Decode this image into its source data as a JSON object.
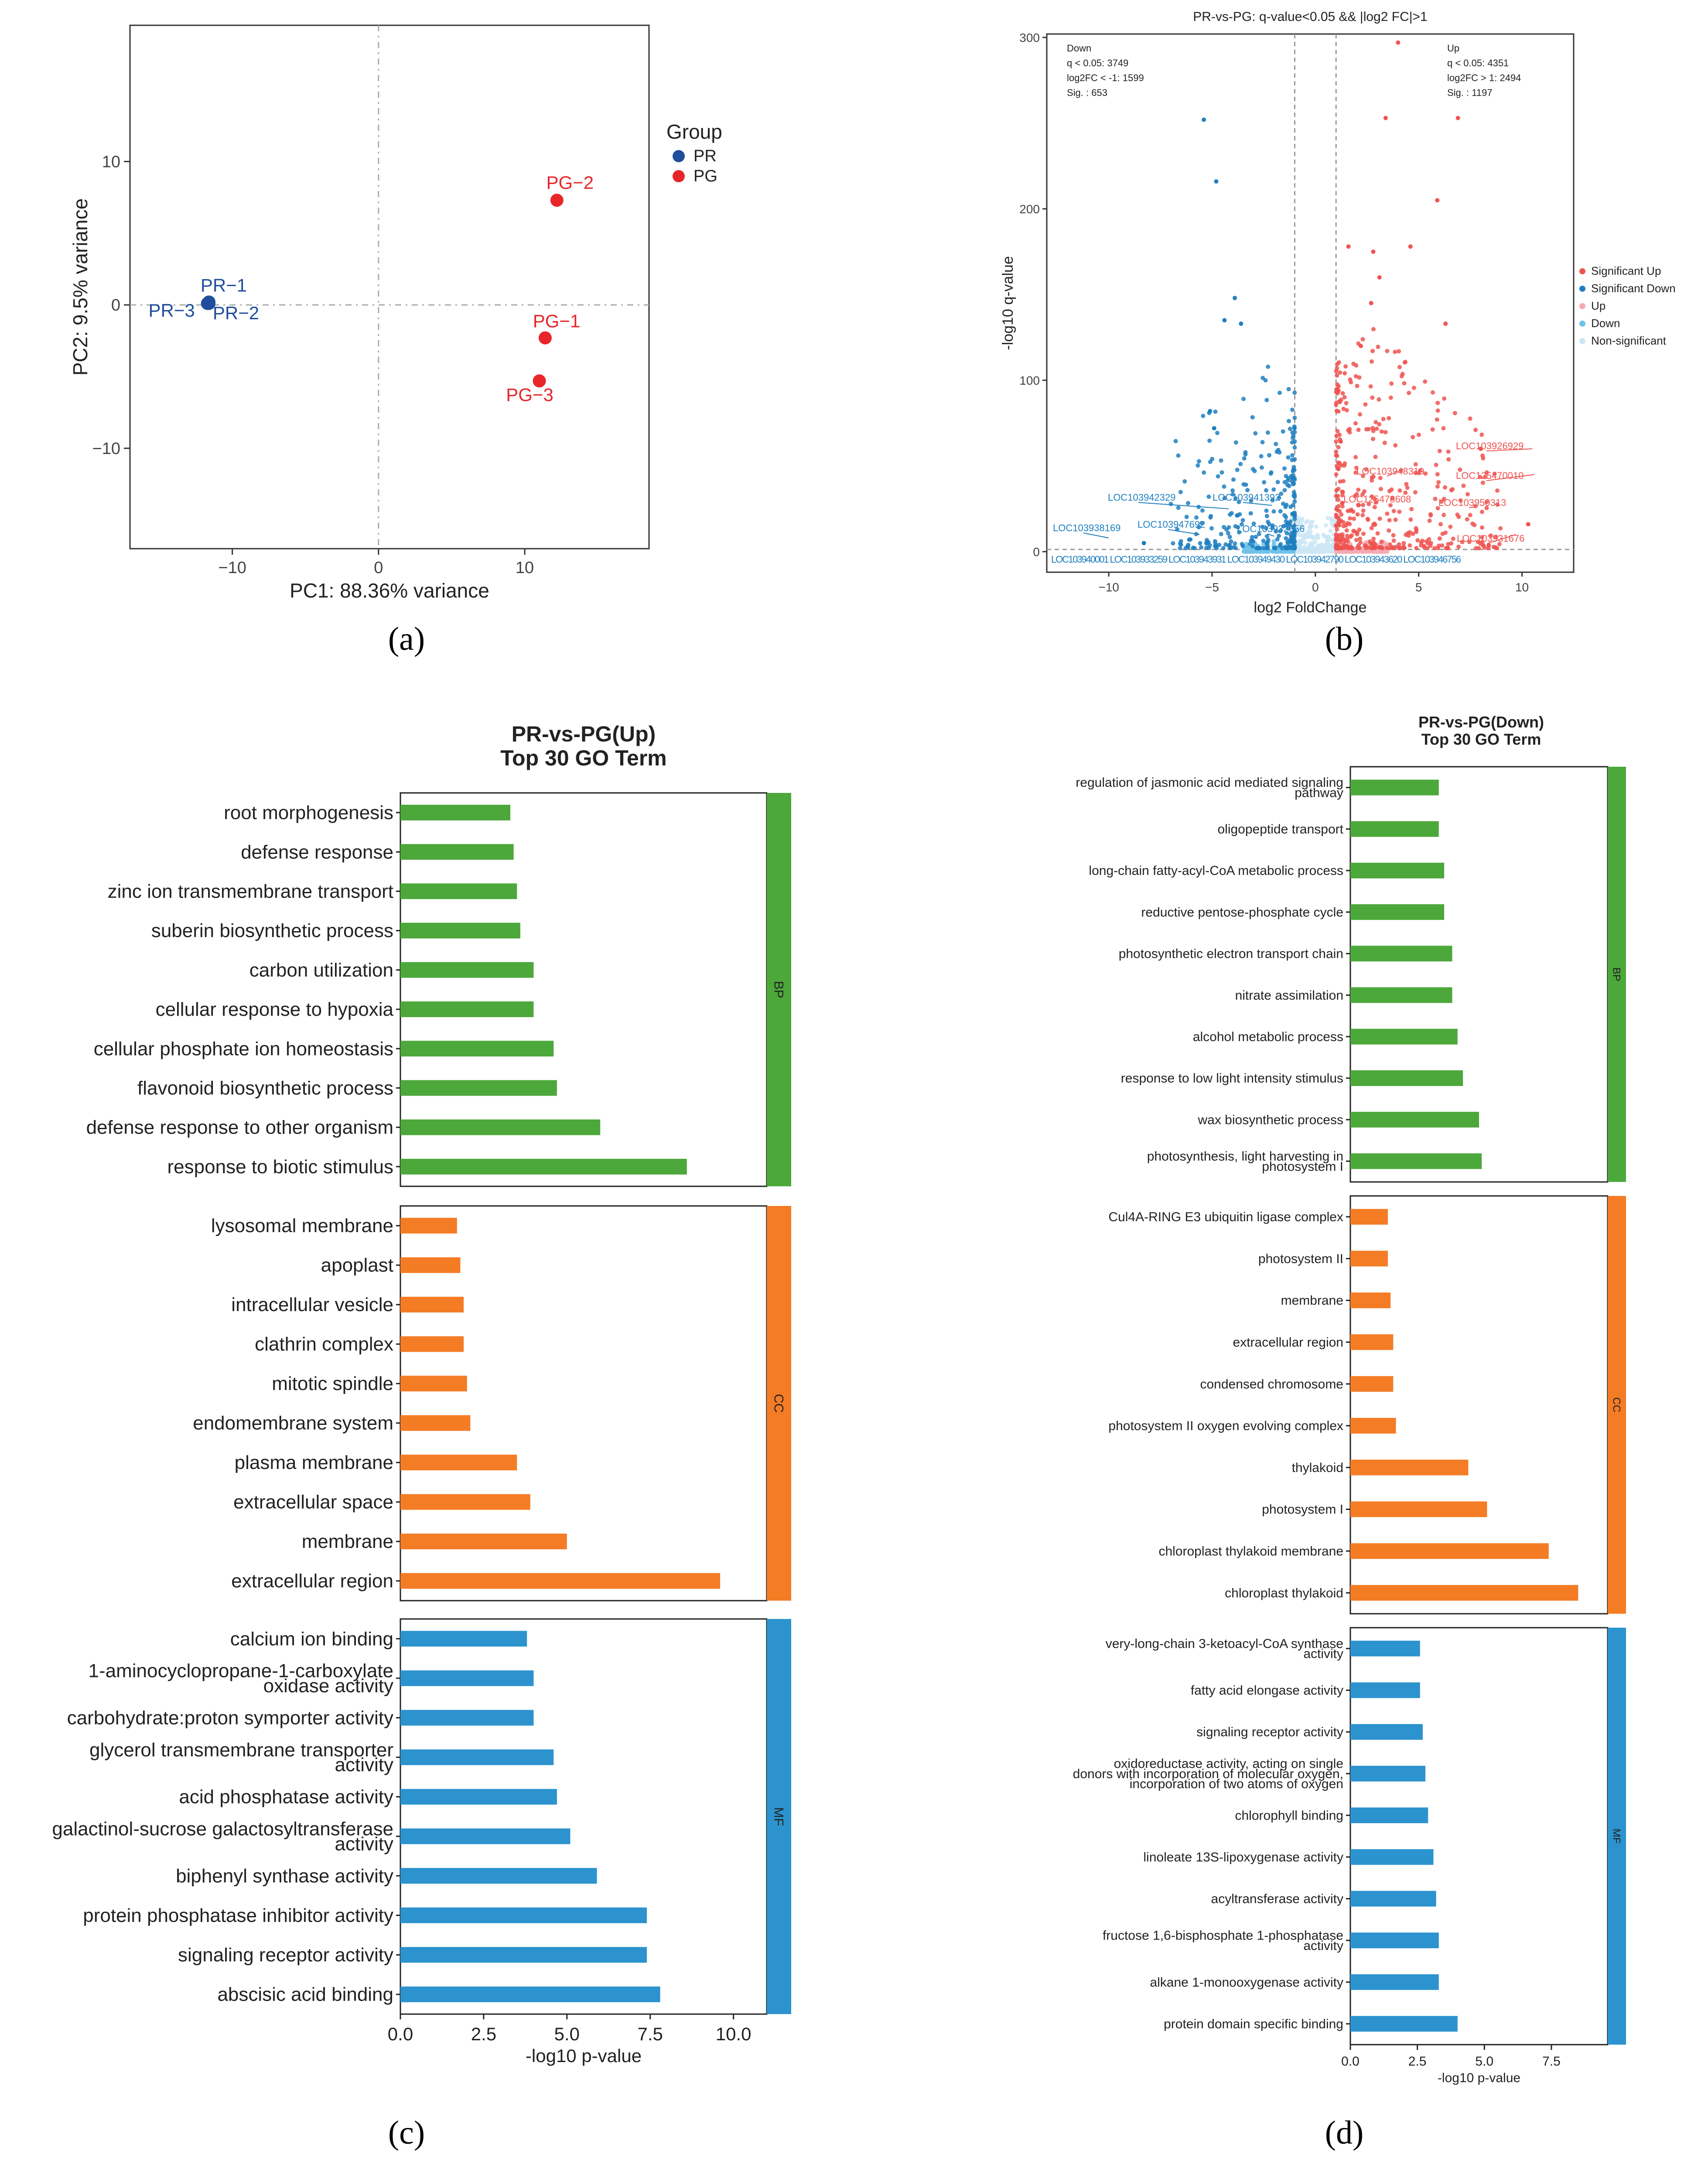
{
  "panel_labels": [
    "(a)",
    "(b)",
    "(c)",
    "(d)"
  ],
  "colors": {
    "pr": "#1f4e9c",
    "pg": "#e8262a",
    "sig_up": "#ef5350",
    "sig_down": "#1e7fc0",
    "up": "#f4aab4",
    "down": "#6fc3ea",
    "ns": "#cde6f4",
    "bp": "#4ca83a",
    "cc": "#f47c25",
    "mf": "#2c93cf"
  },
  "chart_data": [
    {
      "id": "a",
      "type": "scatter",
      "title": "",
      "xlabel": "PC1: 88.36% variance",
      "ylabel": "PC2: 9.5% variance",
      "xlim": [
        -17,
        18.5
      ],
      "ylim": [
        -17,
        19.5
      ],
      "xticks": [
        -10,
        0,
        10
      ],
      "yticks": [
        -10,
        0,
        10
      ],
      "legend": {
        "title": "Group",
        "entries": [
          "PR",
          "PG"
        ],
        "position": "right"
      },
      "points": [
        {
          "label": "PR-1",
          "group": "PR",
          "x": -11.6,
          "y": 0.2
        },
        {
          "label": "PR-2",
          "group": "PR",
          "x": -11.6,
          "y": 0.1
        },
        {
          "label": "PR-3",
          "group": "PR",
          "x": -11.7,
          "y": 0.1
        },
        {
          "label": "PG-2",
          "group": "PG",
          "x": 12.2,
          "y": 7.3
        },
        {
          "label": "PG-1",
          "group": "PG",
          "x": 11.4,
          "y": -2.3
        },
        {
          "label": "PG-3",
          "group": "PG",
          "x": 11.0,
          "y": -5.3
        }
      ]
    },
    {
      "id": "b",
      "type": "scatter",
      "title": "PR-vs-PG: q-value<0.05 && |log2 FC|>1",
      "xlabel": "log2 FoldChange",
      "ylabel": "-log10 q-value",
      "xlim": [
        -13,
        12.5
      ],
      "ylim": [
        -12,
        302
      ],
      "xticks": [
        -10,
        -5,
        0,
        5,
        10
      ],
      "yticks": [
        0,
        100,
        200,
        300
      ],
      "thresholds": {
        "x": [
          -1,
          1
        ],
        "y": 1.3
      },
      "annotations": {
        "down": [
          "Down",
          "q < 0.05: 3749",
          "log2FC < -1: 1599",
          "Sig. : 653"
        ],
        "up": [
          "Up",
          "q < 0.05: 4351",
          "log2FC > 1: 2494",
          "Sig. : 1197"
        ]
      },
      "legend": {
        "position": "right",
        "entries": [
          "Significant Up",
          "Significant Down",
          "Up",
          "Down",
          "Non-significant"
        ]
      },
      "labeled_genes": [
        {
          "name": "LOC103926929",
          "x": 10.5,
          "y": 60,
          "side": "up"
        },
        {
          "name": "LOC125470010",
          "x": 10.6,
          "y": 45,
          "side": "up"
        },
        {
          "name": "LOC103948319",
          "x": 4.0,
          "y": 47,
          "side": "up"
        },
        {
          "name": "LOC103950313",
          "x": 7.7,
          "y": 26,
          "side": "up"
        },
        {
          "name": "LOC103931676",
          "x": 9.7,
          "y": 10,
          "side": "up"
        },
        {
          "name": "LOC125478608",
          "x": 3.0,
          "y": 29,
          "side": "up"
        },
        {
          "name": "LOC103942329",
          "x": -4.2,
          "y": 25,
          "side": "down"
        },
        {
          "name": "LOC103941392",
          "x": -2.1,
          "y": 27,
          "side": "down"
        },
        {
          "name": "LOC103947692",
          "x": -5.6,
          "y": 10,
          "side": "down"
        },
        {
          "name": "LOC103938169",
          "x": -10.0,
          "y": 8,
          "side": "down"
        },
        {
          "name": "LOC103932656",
          "x": -2.0,
          "y": 9,
          "side": "down"
        }
      ],
      "bottom_labels": "LOC103940001 LOC103933259 LOC103943931 LOC103949430 LOC103942790 LOC103943620 LOC103946756"
    },
    {
      "id": "c",
      "type": "bar",
      "orientation": "horizontal",
      "title": "PR-vs-PG(Up)",
      "subtitle": "Top 30 GO Term",
      "xlabel": "-log10 p-value",
      "xlim": [
        0,
        11
      ],
      "xticks": [
        0,
        2.5,
        5,
        7.5,
        10
      ],
      "xtick_labels": [
        "0.0",
        "2.5",
        "5.0",
        "7.5",
        "10.0"
      ],
      "groups": [
        {
          "name": "BP",
          "categories": [
            "root morphogenesis",
            "defense response",
            "zinc ion transmembrane transport",
            "suberin biosynthetic process",
            "carbon utilization",
            "cellular response to hypoxia",
            "cellular phosphate ion homeostasis",
            "flavonoid biosynthetic process",
            "defense response to other organism",
            "response to biotic stimulus"
          ],
          "values": [
            3.3,
            3.4,
            3.5,
            3.6,
            4.0,
            4.0,
            4.6,
            4.7,
            6.0,
            8.6
          ]
        },
        {
          "name": "CC",
          "categories": [
            "lysosomal membrane",
            "apoplast",
            "intracellular vesicle",
            "clathrin complex",
            "mitotic spindle",
            "endomembrane system",
            "plasma membrane",
            "extracellular space",
            "membrane",
            "extracellular region"
          ],
          "values": [
            1.7,
            1.8,
            1.9,
            1.9,
            2.0,
            2.1,
            3.5,
            3.9,
            5.0,
            9.6
          ]
        },
        {
          "name": "MF",
          "categories": [
            "calcium ion binding",
            "1-aminocyclopropane-1-carboxylate oxidase activity",
            "carbohydrate:proton symporter activity",
            "glycerol transmembrane transporter activity",
            "acid phosphatase activity",
            "galactinol-sucrose galactosyltransferase activity",
            "biphenyl synthase activity",
            "protein phosphatase inhibitor activity",
            "signaling receptor activity",
            "abscisic acid binding"
          ],
          "values": [
            3.8,
            4.0,
            4.0,
            4.6,
            4.7,
            5.1,
            5.9,
            7.4,
            7.4,
            7.8
          ]
        }
      ]
    },
    {
      "id": "d",
      "type": "bar",
      "orientation": "horizontal",
      "title": "PR-vs-PG(Down)",
      "subtitle": "Top 30 GO Term",
      "xlabel": "-log10 p-value",
      "xlim": [
        0,
        9.6
      ],
      "xticks": [
        0,
        2.5,
        5,
        7.5
      ],
      "xtick_labels": [
        "0.0",
        "2.5",
        "5.0",
        "7.5"
      ],
      "groups": [
        {
          "name": "BP",
          "categories": [
            "regulation of jasmonic acid mediated signaling pathway",
            "oligopeptide transport",
            "long-chain fatty-acyl-CoA metabolic process",
            "reductive pentose-phosphate cycle",
            "photosynthetic electron transport chain",
            "nitrate assimilation",
            "alcohol metabolic process",
            "response to low light intensity stimulus",
            "wax biosynthetic process",
            "photosynthesis, light harvesting in photosystem I"
          ],
          "values": [
            3.3,
            3.3,
            3.5,
            3.5,
            3.8,
            3.8,
            4.0,
            4.2,
            4.8,
            4.9
          ]
        },
        {
          "name": "CC",
          "categories": [
            "Cul4A-RING E3 ubiquitin ligase complex",
            "photosystem II",
            "membrane",
            "extracellular region",
            "condensed chromosome",
            "photosystem II oxygen evolving complex",
            "thylakoid",
            "photosystem I",
            "chloroplast thylakoid membrane",
            "chloroplast thylakoid"
          ],
          "values": [
            1.4,
            1.4,
            1.5,
            1.6,
            1.6,
            1.7,
            4.4,
            5.1,
            7.4,
            8.5
          ]
        },
        {
          "name": "MF",
          "categories": [
            "very-long-chain 3-ketoacyl-CoA synthase activity",
            "fatty acid elongase activity",
            "signaling receptor activity",
            "oxidoreductase activity, acting on single donors with incorporation of molecular oxygen, incorporation of two atoms of oxygen",
            "chlorophyll binding",
            "linoleate 13S-lipoxygenase activity",
            "acyltransferase activity",
            "fructose 1,6-bisphosphate 1-phosphatase activity",
            "alkane 1-monooxygenase activity",
            "protein domain specific binding"
          ],
          "values": [
            2.6,
            2.6,
            2.7,
            2.8,
            2.9,
            3.1,
            3.2,
            3.3,
            3.3,
            4.0
          ]
        }
      ]
    }
  ]
}
